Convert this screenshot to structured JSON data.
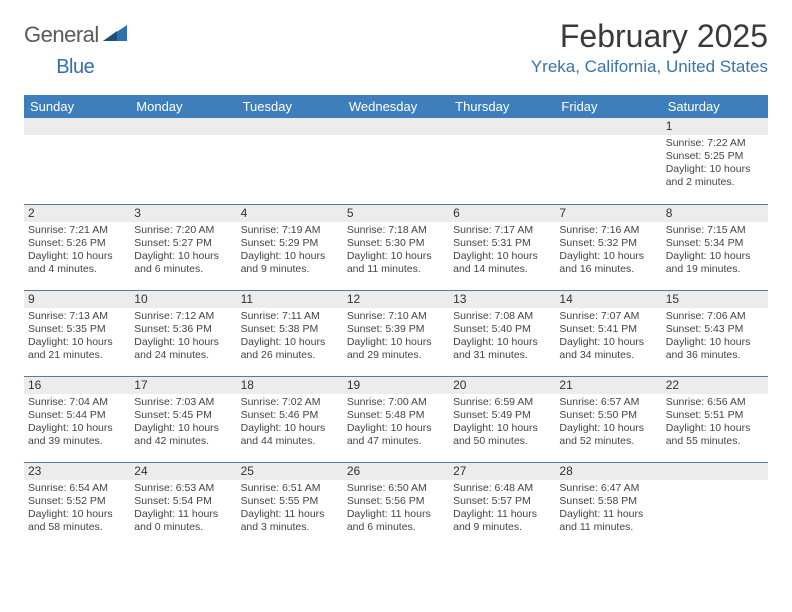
{
  "logo": {
    "text1": "General",
    "text2": "Blue"
  },
  "title": "February 2025",
  "location": "Yreka, California, United States",
  "colors": {
    "header_bg": "#3e7fbb",
    "header_text": "#ffffff",
    "location_color": "#3874a8",
    "row_divider": "#5a7a99",
    "daynum_bg": "#ececec"
  },
  "dayHeaders": [
    "Sunday",
    "Monday",
    "Tuesday",
    "Wednesday",
    "Thursday",
    "Friday",
    "Saturday"
  ],
  "weeks": [
    [
      {
        "n": "",
        "sr": "",
        "ss": "",
        "dl1": "",
        "dl2": ""
      },
      {
        "n": "",
        "sr": "",
        "ss": "",
        "dl1": "",
        "dl2": ""
      },
      {
        "n": "",
        "sr": "",
        "ss": "",
        "dl1": "",
        "dl2": ""
      },
      {
        "n": "",
        "sr": "",
        "ss": "",
        "dl1": "",
        "dl2": ""
      },
      {
        "n": "",
        "sr": "",
        "ss": "",
        "dl1": "",
        "dl2": ""
      },
      {
        "n": "",
        "sr": "",
        "ss": "",
        "dl1": "",
        "dl2": ""
      },
      {
        "n": "1",
        "sr": "Sunrise: 7:22 AM",
        "ss": "Sunset: 5:25 PM",
        "dl1": "Daylight: 10 hours",
        "dl2": "and 2 minutes."
      }
    ],
    [
      {
        "n": "2",
        "sr": "Sunrise: 7:21 AM",
        "ss": "Sunset: 5:26 PM",
        "dl1": "Daylight: 10 hours",
        "dl2": "and 4 minutes."
      },
      {
        "n": "3",
        "sr": "Sunrise: 7:20 AM",
        "ss": "Sunset: 5:27 PM",
        "dl1": "Daylight: 10 hours",
        "dl2": "and 6 minutes."
      },
      {
        "n": "4",
        "sr": "Sunrise: 7:19 AM",
        "ss": "Sunset: 5:29 PM",
        "dl1": "Daylight: 10 hours",
        "dl2": "and 9 minutes."
      },
      {
        "n": "5",
        "sr": "Sunrise: 7:18 AM",
        "ss": "Sunset: 5:30 PM",
        "dl1": "Daylight: 10 hours",
        "dl2": "and 11 minutes."
      },
      {
        "n": "6",
        "sr": "Sunrise: 7:17 AM",
        "ss": "Sunset: 5:31 PM",
        "dl1": "Daylight: 10 hours",
        "dl2": "and 14 minutes."
      },
      {
        "n": "7",
        "sr": "Sunrise: 7:16 AM",
        "ss": "Sunset: 5:32 PM",
        "dl1": "Daylight: 10 hours",
        "dl2": "and 16 minutes."
      },
      {
        "n": "8",
        "sr": "Sunrise: 7:15 AM",
        "ss": "Sunset: 5:34 PM",
        "dl1": "Daylight: 10 hours",
        "dl2": "and 19 minutes."
      }
    ],
    [
      {
        "n": "9",
        "sr": "Sunrise: 7:13 AM",
        "ss": "Sunset: 5:35 PM",
        "dl1": "Daylight: 10 hours",
        "dl2": "and 21 minutes."
      },
      {
        "n": "10",
        "sr": "Sunrise: 7:12 AM",
        "ss": "Sunset: 5:36 PM",
        "dl1": "Daylight: 10 hours",
        "dl2": "and 24 minutes."
      },
      {
        "n": "11",
        "sr": "Sunrise: 7:11 AM",
        "ss": "Sunset: 5:38 PM",
        "dl1": "Daylight: 10 hours",
        "dl2": "and 26 minutes."
      },
      {
        "n": "12",
        "sr": "Sunrise: 7:10 AM",
        "ss": "Sunset: 5:39 PM",
        "dl1": "Daylight: 10 hours",
        "dl2": "and 29 minutes."
      },
      {
        "n": "13",
        "sr": "Sunrise: 7:08 AM",
        "ss": "Sunset: 5:40 PM",
        "dl1": "Daylight: 10 hours",
        "dl2": "and 31 minutes."
      },
      {
        "n": "14",
        "sr": "Sunrise: 7:07 AM",
        "ss": "Sunset: 5:41 PM",
        "dl1": "Daylight: 10 hours",
        "dl2": "and 34 minutes."
      },
      {
        "n": "15",
        "sr": "Sunrise: 7:06 AM",
        "ss": "Sunset: 5:43 PM",
        "dl1": "Daylight: 10 hours",
        "dl2": "and 36 minutes."
      }
    ],
    [
      {
        "n": "16",
        "sr": "Sunrise: 7:04 AM",
        "ss": "Sunset: 5:44 PM",
        "dl1": "Daylight: 10 hours",
        "dl2": "and 39 minutes."
      },
      {
        "n": "17",
        "sr": "Sunrise: 7:03 AM",
        "ss": "Sunset: 5:45 PM",
        "dl1": "Daylight: 10 hours",
        "dl2": "and 42 minutes."
      },
      {
        "n": "18",
        "sr": "Sunrise: 7:02 AM",
        "ss": "Sunset: 5:46 PM",
        "dl1": "Daylight: 10 hours",
        "dl2": "and 44 minutes."
      },
      {
        "n": "19",
        "sr": "Sunrise: 7:00 AM",
        "ss": "Sunset: 5:48 PM",
        "dl1": "Daylight: 10 hours",
        "dl2": "and 47 minutes."
      },
      {
        "n": "20",
        "sr": "Sunrise: 6:59 AM",
        "ss": "Sunset: 5:49 PM",
        "dl1": "Daylight: 10 hours",
        "dl2": "and 50 minutes."
      },
      {
        "n": "21",
        "sr": "Sunrise: 6:57 AM",
        "ss": "Sunset: 5:50 PM",
        "dl1": "Daylight: 10 hours",
        "dl2": "and 52 minutes."
      },
      {
        "n": "22",
        "sr": "Sunrise: 6:56 AM",
        "ss": "Sunset: 5:51 PM",
        "dl1": "Daylight: 10 hours",
        "dl2": "and 55 minutes."
      }
    ],
    [
      {
        "n": "23",
        "sr": "Sunrise: 6:54 AM",
        "ss": "Sunset: 5:52 PM",
        "dl1": "Daylight: 10 hours",
        "dl2": "and 58 minutes."
      },
      {
        "n": "24",
        "sr": "Sunrise: 6:53 AM",
        "ss": "Sunset: 5:54 PM",
        "dl1": "Daylight: 11 hours",
        "dl2": "and 0 minutes."
      },
      {
        "n": "25",
        "sr": "Sunrise: 6:51 AM",
        "ss": "Sunset: 5:55 PM",
        "dl1": "Daylight: 11 hours",
        "dl2": "and 3 minutes."
      },
      {
        "n": "26",
        "sr": "Sunrise: 6:50 AM",
        "ss": "Sunset: 5:56 PM",
        "dl1": "Daylight: 11 hours",
        "dl2": "and 6 minutes."
      },
      {
        "n": "27",
        "sr": "Sunrise: 6:48 AM",
        "ss": "Sunset: 5:57 PM",
        "dl1": "Daylight: 11 hours",
        "dl2": "and 9 minutes."
      },
      {
        "n": "28",
        "sr": "Sunrise: 6:47 AM",
        "ss": "Sunset: 5:58 PM",
        "dl1": "Daylight: 11 hours",
        "dl2": "and 11 minutes."
      },
      {
        "n": "",
        "sr": "",
        "ss": "",
        "dl1": "",
        "dl2": ""
      }
    ]
  ]
}
